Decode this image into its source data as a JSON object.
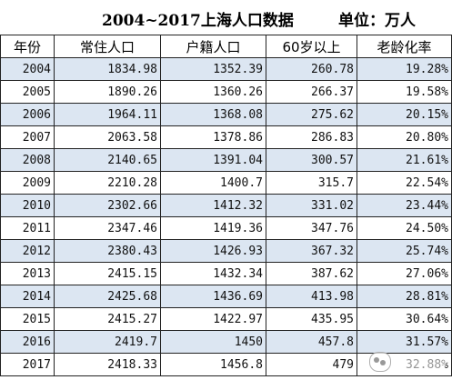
{
  "title": "2004~2017上海人口数据",
  "unit": "单位：万人",
  "table": {
    "headers": [
      "年份",
      "常住人口",
      "户籍人口",
      "60岁以上",
      "老龄化率"
    ],
    "rows": [
      [
        "2004",
        "1834.98",
        "1352.39",
        "260.78",
        "19.28%"
      ],
      [
        "2005",
        "1890.26",
        "1360.26",
        "266.37",
        "19.58%"
      ],
      [
        "2006",
        "1964.11",
        "1368.08",
        "275.62",
        "20.15%"
      ],
      [
        "2007",
        "2063.58",
        "1378.86",
        "286.83",
        "20.80%"
      ],
      [
        "2008",
        "2140.65",
        "1391.04",
        "300.57",
        "21.61%"
      ],
      [
        "2009",
        "2210.28",
        "1400.7",
        "315.7",
        "22.54%"
      ],
      [
        "2010",
        "2302.66",
        "1412.32",
        "331.02",
        "23.44%"
      ],
      [
        "2011",
        "2347.46",
        "1419.36",
        "347.76",
        "24.50%"
      ],
      [
        "2012",
        "2380.43",
        "1426.93",
        "367.32",
        "25.74%"
      ],
      [
        "2013",
        "2415.15",
        "1432.34",
        "387.62",
        "27.06%"
      ],
      [
        "2014",
        "2425.68",
        "1436.69",
        "413.98",
        "28.81%"
      ],
      [
        "2015",
        "2415.27",
        "1422.97",
        "435.95",
        "30.64%"
      ],
      [
        "2016",
        "2419.7",
        "1450",
        "457.8",
        "31.57%"
      ],
      [
        "2017",
        "2418.33",
        "1456.8",
        "479",
        "32.88%"
      ]
    ]
  },
  "colors": {
    "shaded_row": "#dce6f2",
    "border": "#222222"
  }
}
